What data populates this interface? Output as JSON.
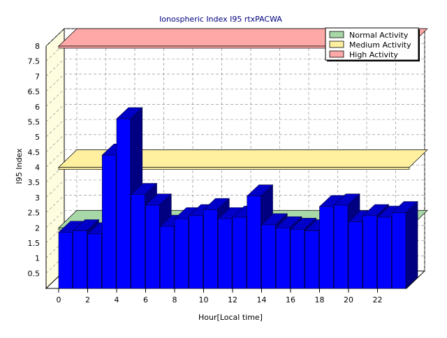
{
  "chart_data": {
    "type": "bar",
    "title": "Ionospheric Index I95 rtxPACWA",
    "xlabel": "Hour[Local time]",
    "ylabel": "I95 Index",
    "ylim": [
      0,
      8
    ],
    "y_ticks": [
      "0.5",
      "1",
      "1.5",
      "2",
      "2.5",
      "3",
      "3.5",
      "4",
      "4.5",
      "5",
      "5.5",
      "6",
      "6.5",
      "7",
      "7.5",
      "8"
    ],
    "x_ticks": [
      "0",
      "2",
      "4",
      "6",
      "8",
      "10",
      "12",
      "14",
      "16",
      "18",
      "20",
      "22"
    ],
    "categories": [
      0,
      1,
      2,
      3,
      4,
      5,
      6,
      7,
      8,
      9,
      10,
      11,
      12,
      13,
      14,
      15,
      16,
      17,
      18,
      19,
      20,
      21,
      22,
      23
    ],
    "series": [
      {
        "values": [
          1.85,
          1.9,
          1.8,
          4.4,
          5.6,
          3.1,
          2.75,
          2.05,
          2.3,
          2.4,
          2.6,
          2.3,
          2.35,
          3.05,
          2.1,
          2.0,
          1.95,
          1.9,
          2.7,
          2.75,
          2.2,
          2.4,
          2.35,
          2.5
        ],
        "color": "#0000ff"
      }
    ],
    "bands": [
      {
        "name": "Normal Activity",
        "from": 0,
        "to": 2,
        "color": "#a8d8a8"
      },
      {
        "name": "Medium Activity",
        "from": 2,
        "to": 4,
        "color": "#fff0a0"
      },
      {
        "name": "High Activity",
        "from": 4,
        "to": 8,
        "color": "#ffa8a8"
      }
    ],
    "legend_position": "top-right",
    "grid": true
  }
}
